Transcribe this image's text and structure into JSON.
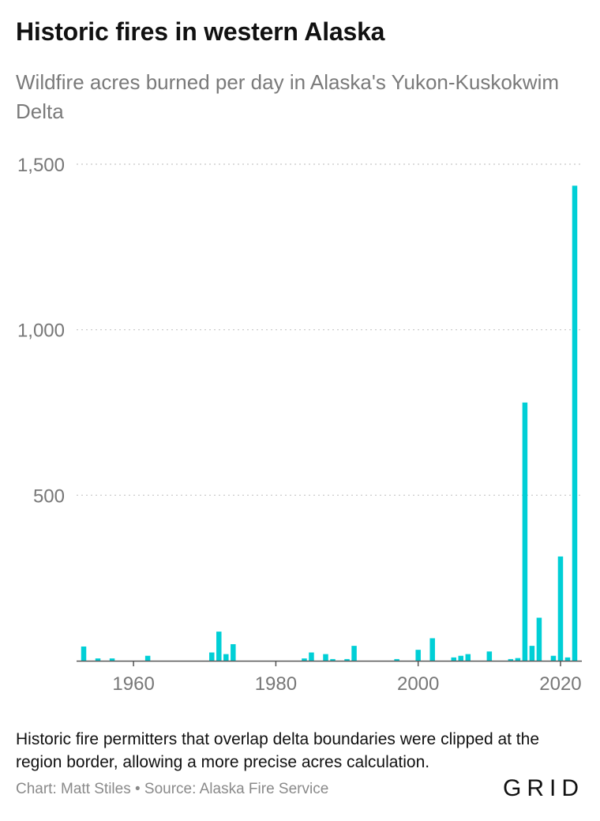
{
  "title": "Historic fires in western Alaska",
  "subtitle": "Wildfire acres burned per day in Alaska's Yukon-Kuskokwim Delta",
  "note": "Historic fire permitters that overlap delta boundaries were clipped at the region border, allowing a more precise acres calculation.",
  "credit": "Chart: Matt Stiles • Source: Alaska Fire Service",
  "logo": "GRID",
  "colors": {
    "bar": "#00cfd6",
    "grid": "#c8c8c8",
    "axis": "#555555",
    "tick": "#777777"
  },
  "chart_data": {
    "type": "bar",
    "title": "Historic fires in western Alaska",
    "xlabel": "",
    "ylabel": "",
    "xlim": [
      1952,
      2023
    ],
    "ylim": [
      0,
      1500
    ],
    "grid": true,
    "x_ticks": [
      1960,
      1980,
      2000,
      2020
    ],
    "y_ticks": [
      500,
      1000,
      1500
    ],
    "y_tick_labels": [
      "500",
      "1,000",
      "1,500"
    ],
    "x_tick_labels": [
      "1960",
      "1980",
      "2000",
      "2020"
    ],
    "bars": [
      {
        "x": 1953,
        "y": 43
      },
      {
        "x": 1955,
        "y": 7
      },
      {
        "x": 1957,
        "y": 7
      },
      {
        "x": 1962,
        "y": 15
      },
      {
        "x": 1971,
        "y": 25
      },
      {
        "x": 1972,
        "y": 88
      },
      {
        "x": 1973,
        "y": 20
      },
      {
        "x": 1974,
        "y": 50
      },
      {
        "x": 1984,
        "y": 7
      },
      {
        "x": 1985,
        "y": 25
      },
      {
        "x": 1987,
        "y": 20
      },
      {
        "x": 1988,
        "y": 5
      },
      {
        "x": 1990,
        "y": 5
      },
      {
        "x": 1991,
        "y": 45
      },
      {
        "x": 1997,
        "y": 5
      },
      {
        "x": 2000,
        "y": 33
      },
      {
        "x": 2002,
        "y": 68
      },
      {
        "x": 2005,
        "y": 10
      },
      {
        "x": 2006,
        "y": 15
      },
      {
        "x": 2007,
        "y": 20
      },
      {
        "x": 2010,
        "y": 28
      },
      {
        "x": 2013,
        "y": 5
      },
      {
        "x": 2014,
        "y": 8
      },
      {
        "x": 2015,
        "y": 780
      },
      {
        "x": 2016,
        "y": 45
      },
      {
        "x": 2017,
        "y": 130
      },
      {
        "x": 2019,
        "y": 15
      },
      {
        "x": 2020,
        "y": 315
      },
      {
        "x": 2021,
        "y": 10
      },
      {
        "x": 2022,
        "y": 1435
      }
    ]
  }
}
